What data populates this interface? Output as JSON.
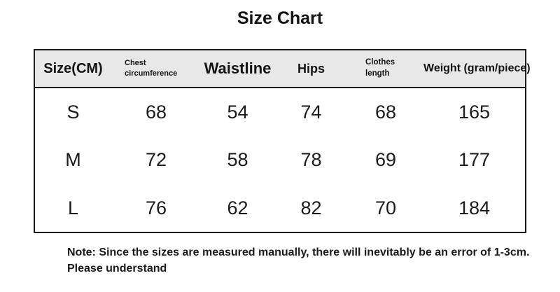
{
  "title": "Size Chart",
  "table": {
    "headers": [
      "Size(CM)",
      "Chest circumference",
      "Waistline",
      "Hips",
      "Clothes length",
      "Weight (gram/piece)"
    ],
    "rows": [
      {
        "cells": [
          "S",
          "68",
          "54",
          "74",
          "68",
          "165"
        ]
      },
      {
        "cells": [
          "M",
          "72",
          "58",
          "78",
          "69",
          "177"
        ]
      },
      {
        "cells": [
          "L",
          "76",
          "62",
          "82",
          "70",
          "184"
        ]
      }
    ]
  },
  "note": {
    "line1": "Note: Since the sizes are measured manually, there will inevitably be an error of 1-3cm.",
    "line2": "Please understand"
  },
  "colors": {
    "page_background": "#ffffff",
    "header_background": "#e8e8e8",
    "border": "#1c1c1c",
    "text": "#111111"
  },
  "chart_data": {
    "type": "table",
    "title": "Size Chart",
    "columns": [
      "Size(CM)",
      "Chest circumference",
      "Waistline",
      "Hips",
      "Clothes length",
      "Weight (gram/piece)"
    ],
    "rows": [
      [
        "S",
        68,
        54,
        74,
        68,
        165
      ],
      [
        "M",
        72,
        58,
        78,
        69,
        177
      ],
      [
        "L",
        76,
        62,
        82,
        70,
        184
      ]
    ],
    "units": "CM (weight in gram/piece)",
    "note": "Note: Since the sizes are measured manually, there will inevitably be an error of 1-3cm. Please understand"
  }
}
